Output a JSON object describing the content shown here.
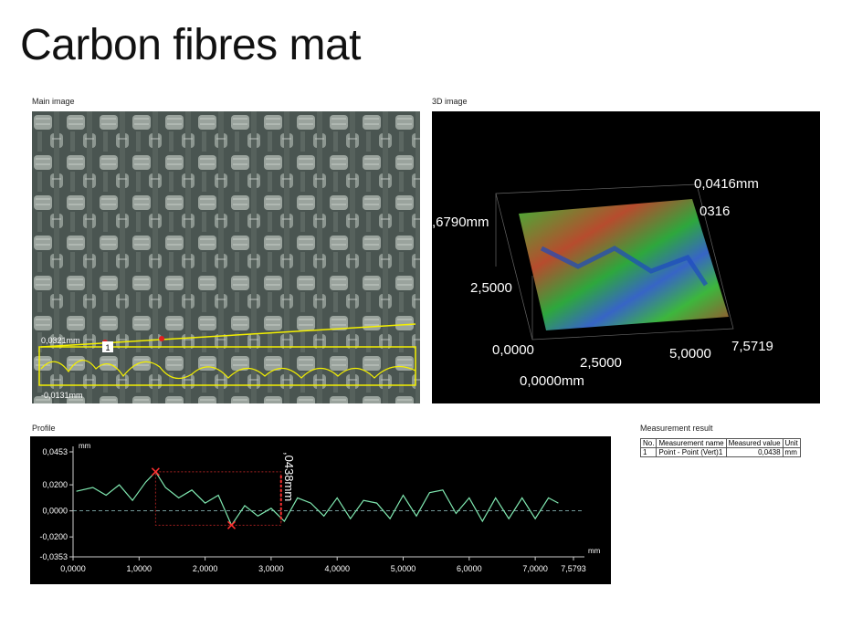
{
  "title": "Carbon fibres mat",
  "main_image": {
    "label": "Main image",
    "top_value": "0,0321mm",
    "bottom_value": "-0,0131mm",
    "marker": "1"
  },
  "image_3d": {
    "label": "3D image",
    "z_top": "0,0416mm",
    "z_partial": "0316",
    "y_far": ",6790mm",
    "y_mid": "2,5000",
    "y_zero": "0,0000",
    "x_mid1": "2,5000",
    "x_mid2": "5,0000",
    "x_end": "7,5719",
    "x_origin": "0,0000mm"
  },
  "measurement": {
    "label": "Measurement result",
    "columns": [
      "No.",
      "Measurement name",
      "Measured value",
      "Unit"
    ],
    "rows": [
      [
        "1",
        "Point - Point (Vert)1",
        "0,0438",
        "mm"
      ]
    ]
  },
  "chart_data": {
    "type": "line",
    "title": "Profile",
    "y_unit": "mm",
    "x_unit": "mm",
    "annotation": ",0438mm",
    "color": "#7fe8b0",
    "xlim": [
      0,
      7.5793
    ],
    "ylim": [
      -0.0353,
      0.0453
    ],
    "xticks": [
      {
        "value": 0,
        "label": "0,0000"
      },
      {
        "value": 1,
        "label": "1,0000"
      },
      {
        "value": 2,
        "label": "2,0000"
      },
      {
        "value": 3,
        "label": "3,0000"
      },
      {
        "value": 4,
        "label": "4,0000"
      },
      {
        "value": 5,
        "label": "5,0000"
      },
      {
        "value": 6,
        "label": "6,0000"
      },
      {
        "value": 7,
        "label": "7,0000"
      },
      {
        "value": 7.5793,
        "label": "7,5793"
      }
    ],
    "yticks": [
      {
        "value": 0.0453,
        "label": "0,0453"
      },
      {
        "value": 0.02,
        "label": "0,0200"
      },
      {
        "value": 0,
        "label": "0,0000"
      },
      {
        "value": -0.02,
        "label": "-0,0200"
      },
      {
        "value": -0.0353,
        "label": "-0,0353"
      }
    ],
    "x": [
      0.05,
      0.3,
      0.5,
      0.7,
      0.9,
      1.1,
      1.25,
      1.4,
      1.6,
      1.8,
      2.0,
      2.2,
      2.4,
      2.6,
      2.8,
      3.0,
      3.2,
      3.4,
      3.6,
      3.8,
      4.0,
      4.2,
      4.4,
      4.6,
      4.8,
      5.0,
      5.2,
      5.4,
      5.6,
      5.8,
      6.0,
      6.2,
      6.4,
      6.6,
      6.8,
      7.0,
      7.2,
      7.35
    ],
    "values": [
      0.015,
      0.018,
      0.012,
      0.02,
      0.008,
      0.022,
      0.03,
      0.018,
      0.01,
      0.016,
      0.006,
      0.012,
      -0.011,
      0.004,
      -0.004,
      0.002,
      -0.008,
      0.01,
      0.006,
      -0.004,
      0.01,
      -0.006,
      0.008,
      0.006,
      -0.006,
      0.012,
      -0.004,
      0.014,
      0.016,
      -0.002,
      0.01,
      -0.008,
      0.01,
      -0.006,
      0.01,
      -0.006,
      0.01,
      0.006
    ],
    "marked_points": [
      6,
      12
    ]
  }
}
